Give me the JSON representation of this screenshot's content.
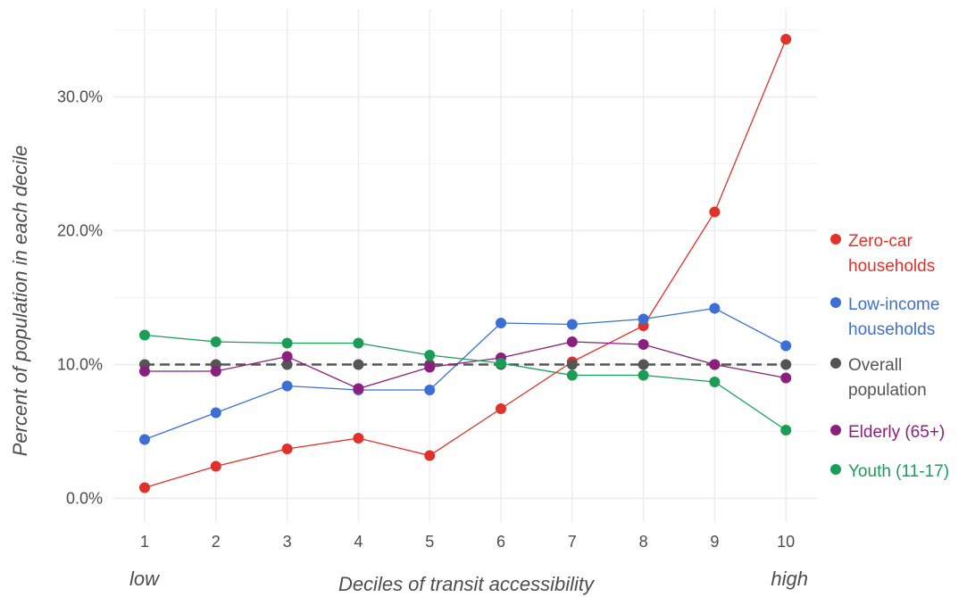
{
  "chart_data": {
    "type": "line",
    "title": "",
    "xlabel": "Deciles of transit accessibility",
    "ylabel": "Percent of population in each decile",
    "x_end_labels": {
      "low": "low",
      "high": "high"
    },
    "x": [
      1,
      2,
      3,
      4,
      5,
      6,
      7,
      8,
      9,
      10
    ],
    "x_tick_labels": [
      "1",
      "2",
      "3",
      "4",
      "5",
      "6",
      "7",
      "8",
      "9",
      "10"
    ],
    "y_ticks": [
      0,
      10,
      20,
      30
    ],
    "y_tick_labels": [
      "0.0%",
      "10.0%",
      "20.0%",
      "30.0%"
    ],
    "ylim": [
      -1.0,
      36.5
    ],
    "grid": true,
    "legend_position": "right",
    "series": [
      {
        "name": "Zero-car households",
        "name_lines": [
          "Zero-car",
          "households"
        ],
        "color": "#e0312b",
        "dashed": false,
        "values": [
          0.8,
          2.4,
          3.7,
          4.5,
          3.2,
          6.7,
          10.2,
          12.9,
          21.4,
          34.3
        ]
      },
      {
        "name": "Low-income households",
        "name_lines": [
          "Low-income",
          "households"
        ],
        "color": "#3b6fd6",
        "dashed": false,
        "values": [
          4.4,
          6.4,
          8.4,
          8.1,
          8.1,
          13.1,
          13.0,
          13.4,
          14.2,
          11.4
        ]
      },
      {
        "name": "Overall population",
        "name_lines": [
          "Overall",
          "population"
        ],
        "color": "#555555",
        "dashed": true,
        "values": [
          10.0,
          10.0,
          10.0,
          10.0,
          10.0,
          10.0,
          10.0,
          10.0,
          10.0,
          10.0
        ]
      },
      {
        "name": "Elderly (65+)",
        "name_lines": [
          "Elderly (65+)"
        ],
        "color": "#8b1f7e",
        "dashed": false,
        "values": [
          9.5,
          9.5,
          10.6,
          8.2,
          9.8,
          10.5,
          11.7,
          11.5,
          10.0,
          9.0
        ]
      },
      {
        "name": "Youth (11-17)",
        "name_lines": [
          "Youth (11-17)"
        ],
        "color": "#1a9e55",
        "dashed": false,
        "values": [
          12.2,
          11.7,
          11.6,
          11.6,
          10.7,
          10.1,
          9.2,
          9.2,
          8.7,
          5.1
        ]
      }
    ]
  }
}
